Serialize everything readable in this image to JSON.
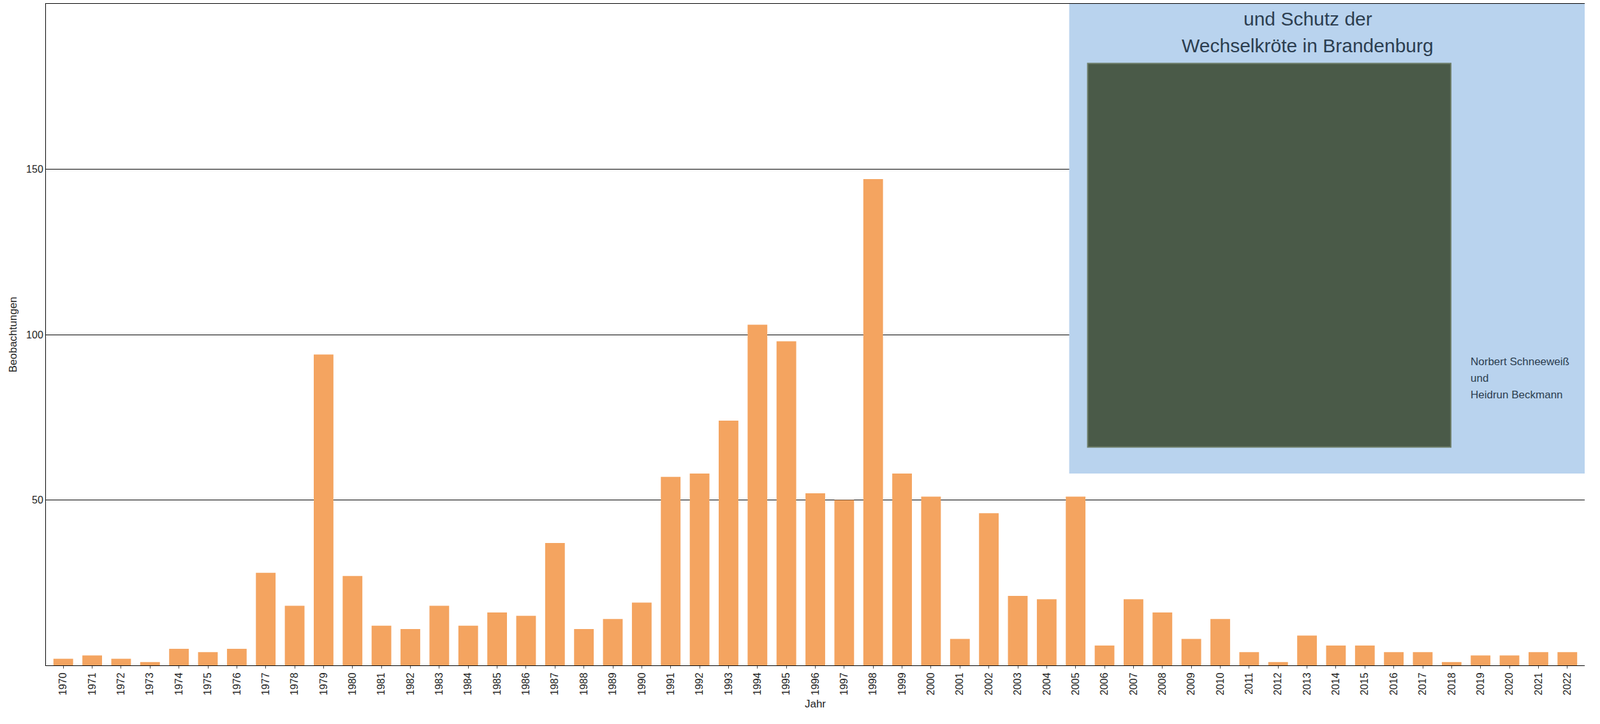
{
  "chart_data": {
    "type": "bar",
    "x_label": "Jahr",
    "y_label": "Beobachtungen",
    "categories": [
      "1970",
      "1971",
      "1972",
      "1973",
      "1974",
      "1975",
      "1976",
      "1977",
      "1978",
      "1979",
      "1980",
      "1981",
      "1982",
      "1983",
      "1984",
      "1985",
      "1986",
      "1987",
      "1988",
      "1989",
      "1990",
      "1991",
      "1992",
      "1993",
      "1994",
      "1995",
      "1996",
      "1997",
      "1998",
      "1999",
      "2000",
      "2001",
      "2002",
      "2003",
      "2004",
      "2005",
      "2006",
      "2007",
      "2008",
      "2009",
      "2010",
      "2011",
      "2012",
      "2013",
      "2014",
      "2015",
      "2016",
      "2017",
      "2018",
      "2019",
      "2020",
      "2021",
      "2022"
    ],
    "values": [
      2,
      3,
      2,
      1,
      5,
      4,
      5,
      28,
      18,
      94,
      27,
      12,
      11,
      18,
      12,
      16,
      15,
      37,
      11,
      14,
      19,
      57,
      58,
      74,
      103,
      98,
      52,
      50,
      147,
      58,
      51,
      8,
      46,
      21,
      20,
      51,
      6,
      20,
      16,
      8,
      14,
      4,
      1,
      9,
      6,
      6,
      4,
      4,
      1,
      3,
      3,
      4,
      4
    ],
    "color": "#f4a460",
    "ylim": [
      0,
      200
    ],
    "yticks": [
      50,
      100,
      150
    ],
    "grid": true,
    "annotations": [
      "und Schutz der",
      "Wechselkröte in Brandenburg",
      "Norbert Schneeweiß",
      "und",
      "Heidrun Beckmann"
    ]
  }
}
